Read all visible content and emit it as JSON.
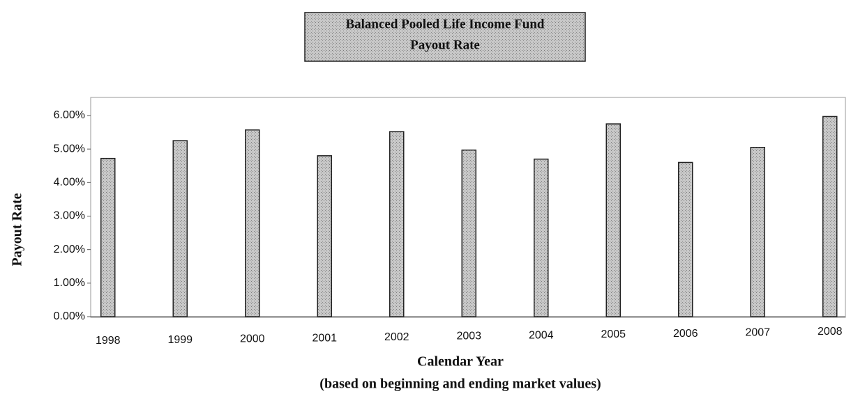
{
  "chart_data": {
    "type": "bar",
    "title": "Balanced Pooled Life Income Fund",
    "subtitle": "Payout Rate",
    "x_label": "Calendar Year",
    "note": "(based on beginning and ending market values)",
    "y_label": "Payout Rate",
    "categories": [
      "1998",
      "1999",
      "2000",
      "2001",
      "2002",
      "2003",
      "2004",
      "2005",
      "2006",
      "2007",
      "2008"
    ],
    "values": [
      4.72,
      5.25,
      5.57,
      4.8,
      5.52,
      4.97,
      4.7,
      5.75,
      4.6,
      5.05,
      5.97
    ],
    "color": "#b4b4b4",
    "ylim": [
      0,
      6
    ],
    "yticks": [
      {
        "value": 0,
        "label": "0.00%"
      },
      {
        "value": 1,
        "label": "1.00%"
      },
      {
        "value": 2,
        "label": "2.00%"
      },
      {
        "value": 3,
        "label": "3.00%"
      },
      {
        "value": 4,
        "label": "4.00%"
      },
      {
        "value": 5,
        "label": "5.00%"
      },
      {
        "value": 6,
        "label": "6.00%"
      }
    ],
    "grid": false
  }
}
